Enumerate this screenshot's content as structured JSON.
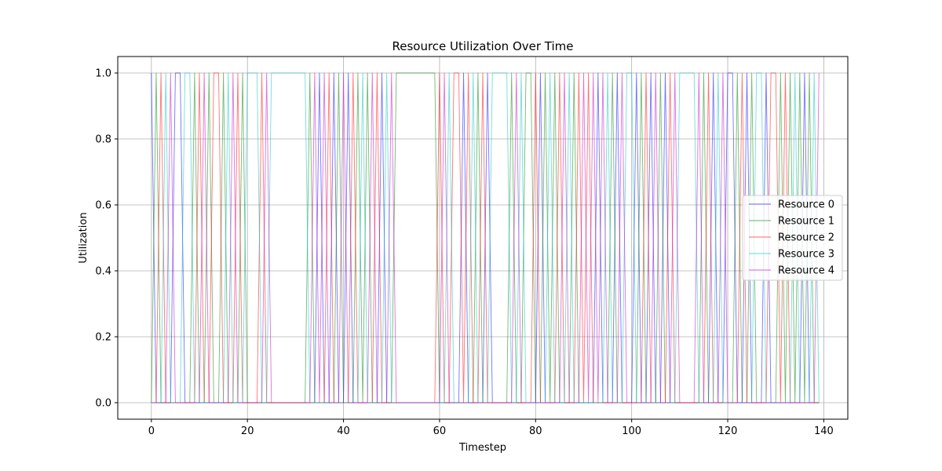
{
  "chart_data": {
    "type": "line",
    "title": "Resource Utilization Over Time",
    "xlabel": "Timestep",
    "ylabel": "Utilization",
    "xlim": [
      -7,
      145
    ],
    "ylim": [
      -0.05,
      1.05
    ],
    "xticks": [
      0,
      20,
      40,
      60,
      80,
      100,
      120,
      140
    ],
    "yticks": [
      0.0,
      0.2,
      0.4,
      0.6,
      0.8,
      1.0
    ],
    "xtick_labels": [
      "0",
      "20",
      "40",
      "60",
      "80",
      "100",
      "120",
      "140"
    ],
    "ytick_labels": [
      "0.0",
      "0.2",
      "0.4",
      "0.6",
      "0.8",
      "1.0"
    ],
    "grid": true,
    "legend_position": "center-right",
    "x": [
      0,
      1,
      2,
      3,
      4,
      5,
      6,
      7,
      8,
      9,
      10,
      11,
      12,
      13,
      14,
      15,
      16,
      17,
      18,
      19,
      20,
      21,
      22,
      23,
      24,
      25,
      26,
      27,
      28,
      29,
      30,
      31,
      32,
      33,
      34,
      35,
      36,
      37,
      38,
      39,
      40,
      41,
      42,
      43,
      44,
      45,
      46,
      47,
      48,
      49,
      50,
      51,
      52,
      53,
      54,
      55,
      56,
      57,
      58,
      59,
      60,
      61,
      62,
      63,
      64,
      65,
      66,
      67,
      68,
      69,
      70,
      71,
      72,
      73,
      74,
      75,
      76,
      77,
      78,
      79,
      80,
      81,
      82,
      83,
      84,
      85,
      86,
      87,
      88,
      89,
      90,
      91,
      92,
      93,
      94,
      95,
      96,
      97,
      98,
      99,
      100,
      101,
      102,
      103,
      104,
      105,
      106,
      107,
      108,
      109,
      110,
      111,
      112,
      113,
      114,
      115,
      116,
      117,
      118,
      119,
      120,
      121,
      122,
      123,
      124,
      125,
      126,
      127,
      128,
      129,
      130,
      131,
      132,
      133,
      134,
      135,
      136,
      137,
      138,
      139
    ],
    "active_resource": [
      0,
      1,
      2,
      3,
      4,
      0,
      0,
      3,
      3,
      1,
      2,
      4,
      1,
      2,
      2,
      1,
      3,
      4,
      2,
      1,
      3,
      3,
      3,
      2,
      4,
      3,
      3,
      3,
      3,
      3,
      3,
      3,
      3,
      1,
      4,
      0,
      4,
      2,
      0,
      1,
      4,
      0,
      2,
      1,
      3,
      1,
      4,
      2,
      0,
      3,
      4,
      1,
      1,
      1,
      1,
      1,
      1,
      1,
      1,
      1,
      2,
      4,
      3,
      2,
      2,
      0,
      2,
      3,
      1,
      2,
      0,
      3,
      3,
      3,
      3,
      1,
      4,
      3,
      1,
      1,
      2,
      0,
      1,
      3,
      1,
      2,
      4,
      3,
      1,
      2,
      4,
      2,
      4,
      0,
      4,
      3,
      1,
      0,
      4,
      3,
      3,
      0,
      1,
      2,
      0,
      4,
      1,
      0,
      2,
      4,
      3,
      3,
      3,
      3,
      4,
      1,
      2,
      0,
      3,
      4,
      0,
      0,
      1,
      2,
      0,
      1,
      3,
      3,
      0,
      2,
      2,
      1,
      2,
      1,
      3,
      1,
      0,
      1,
      3,
      4
    ],
    "series": [
      {
        "name": "Resource 0",
        "color": "#0000ff",
        "index": 0
      },
      {
        "name": "Resource 1",
        "color": "#008000",
        "index": 1
      },
      {
        "name": "Resource 2",
        "color": "#ff0000",
        "index": 2
      },
      {
        "name": "Resource 3",
        "color": "#00bfbf",
        "index": 3
      },
      {
        "name": "Resource 4",
        "color": "#bf00bf",
        "index": 4
      }
    ]
  }
}
